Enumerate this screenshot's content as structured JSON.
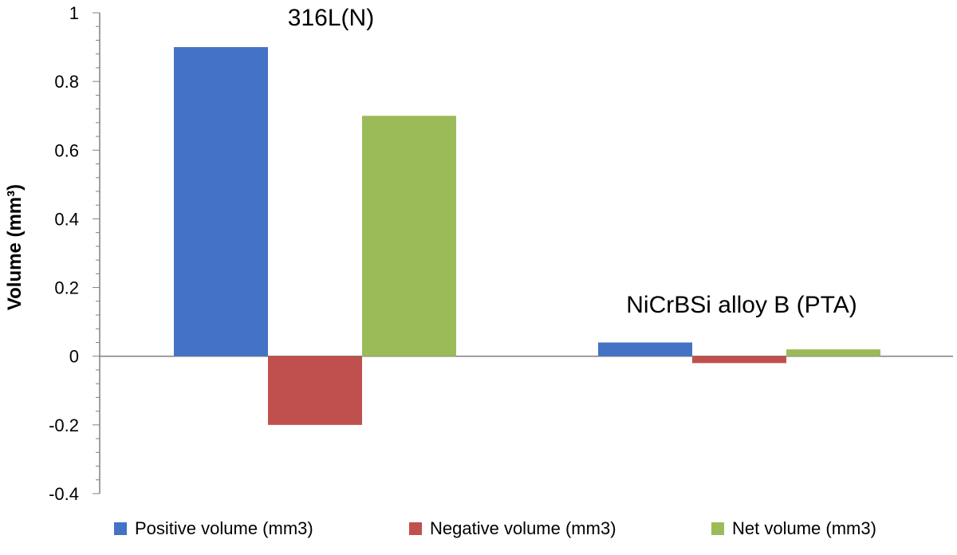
{
  "chart_data": {
    "type": "bar",
    "categories": [
      "316L(N)",
      "NiCrBSi alloy B (PTA)"
    ],
    "series": [
      {
        "name": "Positive volume (mm3)",
        "color": "#4472C4",
        "values": [
          0.9,
          0.04
        ]
      },
      {
        "name": "Negative volume (mm3)",
        "color": "#C0504D",
        "values": [
          -0.2,
          -0.02
        ]
      },
      {
        "name": "Net volume (mm3)",
        "color": "#9BBB59",
        "values": [
          0.7,
          0.02
        ]
      }
    ],
    "ylabel": "Volume  (mm³)",
    "ylim": [
      -0.4,
      1
    ],
    "yticks": [
      1,
      0.8,
      0.6,
      0.4,
      0.2,
      0,
      -0.2,
      -0.4
    ],
    "ytick_labels": [
      "1",
      "0.8",
      "0.6",
      "0.4",
      "0.2",
      "0",
      "-0.2",
      "-0.4"
    ],
    "grid": false,
    "legend_position": "bottom"
  }
}
